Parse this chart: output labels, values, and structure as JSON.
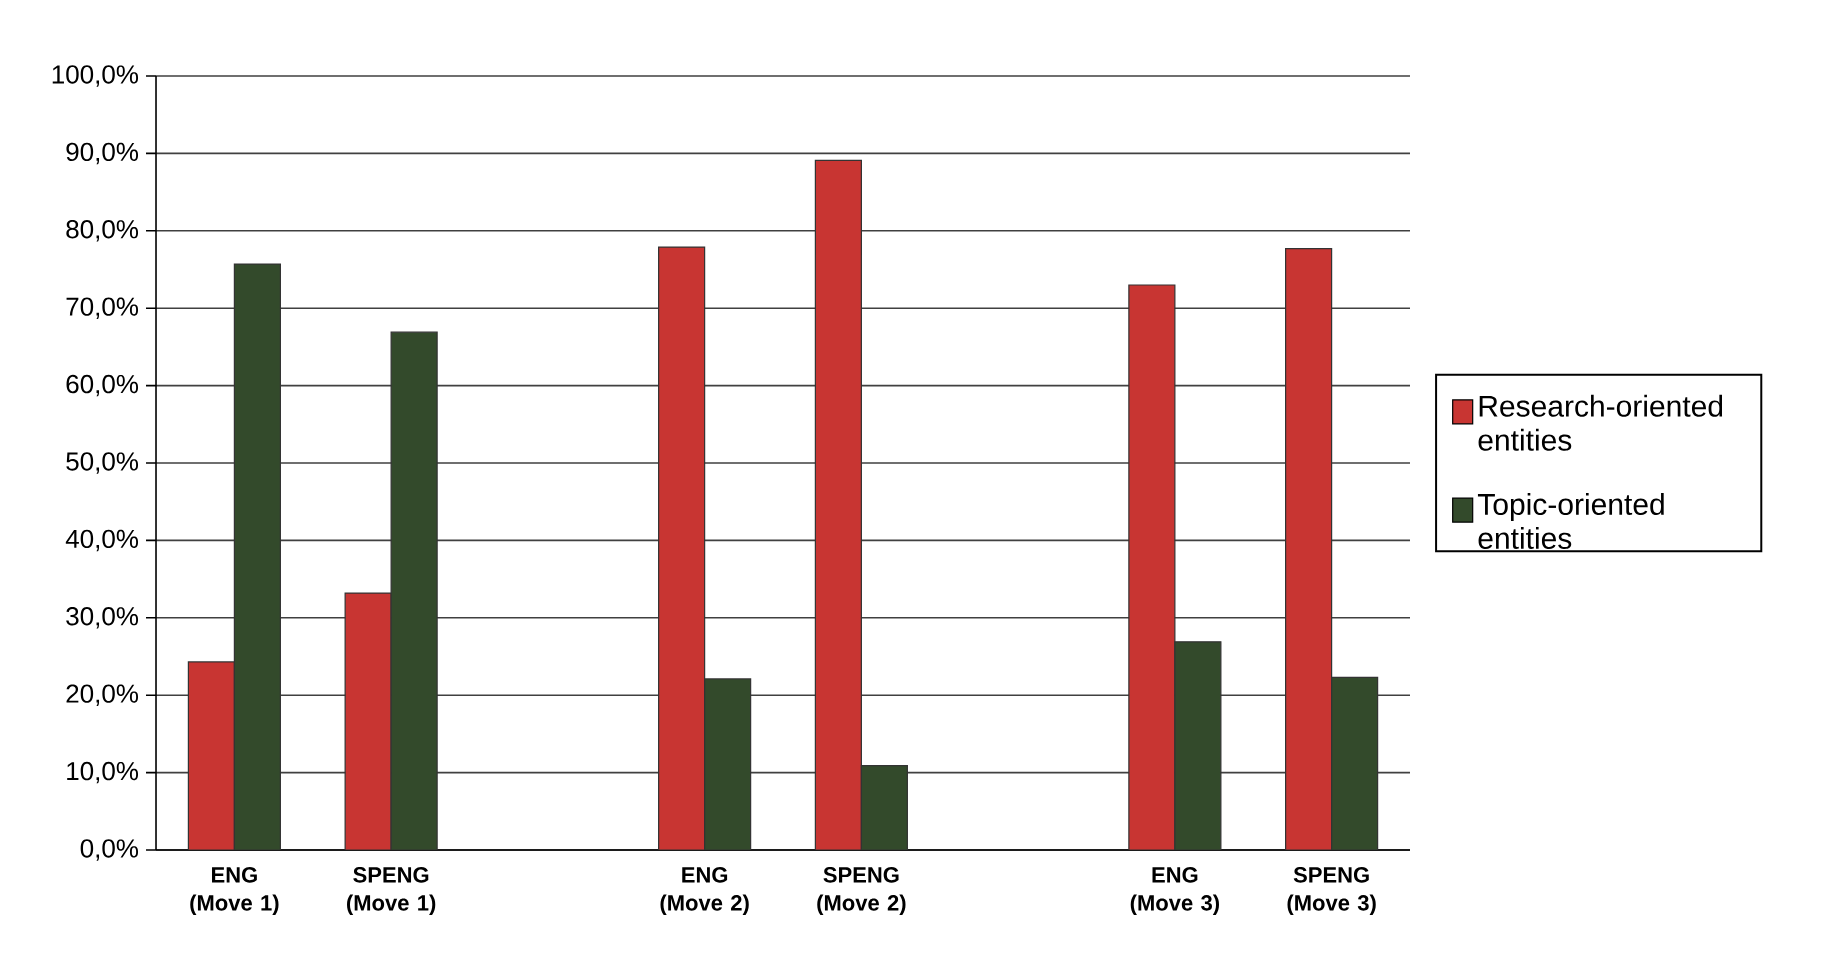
{
  "chart_data": {
    "type": "bar",
    "categories": [
      "ENG (Move 1)",
      "SPENG (Move 1)",
      null,
      "ENG (Move 2)",
      "SPENG (Move 2)",
      null,
      "ENG (Move 3)",
      "SPENG (Move 3)"
    ],
    "series": [
      {
        "name": "Research-oriented entities",
        "color": "#c83532",
        "values": [
          24.3,
          33.2,
          null,
          77.9,
          89.1,
          null,
          73.0,
          77.7
        ]
      },
      {
        "name": "Topic-oriented entities",
        "color": "#334a2b",
        "values": [
          75.7,
          66.9,
          null,
          22.1,
          10.9,
          null,
          26.9,
          22.3
        ]
      }
    ],
    "ylim": [
      0,
      100
    ],
    "yticks": [
      {
        "value": 0,
        "label": "0,0%"
      },
      {
        "value": 10,
        "label": "10,0%"
      },
      {
        "value": 20,
        "label": "20,0%"
      },
      {
        "value": 30,
        "label": "30,0%"
      },
      {
        "value": 40,
        "label": "40,0%"
      },
      {
        "value": 50,
        "label": "50,0%"
      },
      {
        "value": 60,
        "label": "60,0%"
      },
      {
        "value": 70,
        "label": "70,0%"
      },
      {
        "value": 80,
        "label": "80,0%"
      },
      {
        "value": 90,
        "label": "90,0%"
      },
      {
        "value": 100,
        "label": "100,0%"
      }
    ],
    "grid": "y",
    "legend": "right"
  }
}
